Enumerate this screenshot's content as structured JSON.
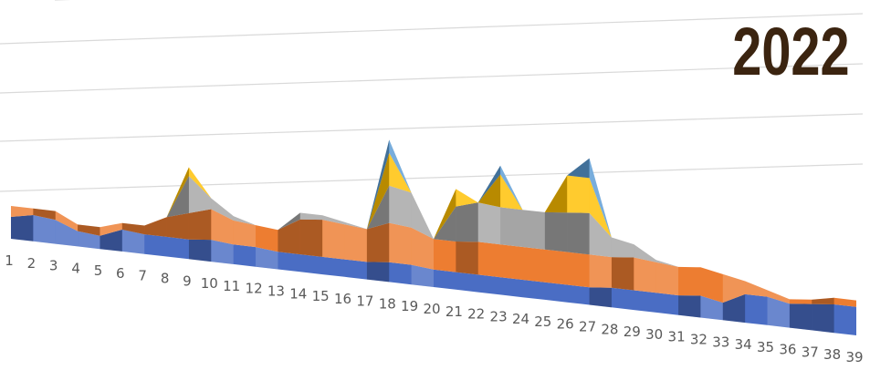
{
  "chart_data": {
    "type": "area",
    "title": "2022",
    "categories": [
      "1",
      "2",
      "3",
      "4",
      "5",
      "6",
      "7",
      "8",
      "9",
      "10",
      "11",
      "12",
      "13",
      "14",
      "15",
      "16",
      "17",
      "18",
      "19",
      "20",
      "21",
      "22",
      "23",
      "24",
      "25",
      "26",
      "27",
      "28",
      "29",
      "30",
      "31",
      "32",
      "33",
      "34",
      "35",
      "36",
      "37",
      "38",
      "39"
    ],
    "series": [
      {
        "name": "",
        "values": [
          1.0,
          1.2,
          1.1,
          0.7,
          0.6,
          1.0,
          0.9,
          0.9,
          0.9,
          1.0,
          0.9,
          0.9,
          0.8,
          0.8,
          0.8,
          0.8,
          0.8,
          0.9,
          0.9,
          0.8,
          0.8,
          0.8,
          0.8,
          0.8,
          0.8,
          0.8,
          0.8,
          0.9,
          0.9,
          0.9,
          0.9,
          1.0,
          0.8,
          1.3,
          1.3,
          1.1,
          1.2,
          1.3,
          1.3
        ],
        "color": "#4a6dc4"
      },
      {
        "name": "",
        "values": [
          0.5,
          0.3,
          0.4,
          0.3,
          0.4,
          0.3,
          0.4,
          0.9,
          1.2,
          1.4,
          1.1,
          1.0,
          1.0,
          1.6,
          1.7,
          1.6,
          1.5,
          1.8,
          1.7,
          1.4,
          1.4,
          1.5,
          1.5,
          1.5,
          1.5,
          1.5,
          1.5,
          1.4,
          1.5,
          1.4,
          1.3,
          1.3,
          1.3,
          0.6,
          0.3,
          0.2,
          0.2,
          0.3,
          0.3
        ],
        "color": "#ed7d31"
      },
      {
        "name": "",
        "values": [
          0.0,
          0.0,
          0.0,
          0.0,
          0.0,
          0.0,
          0.0,
          0.0,
          1.7,
          0.5,
          0.2,
          0.0,
          0.0,
          0.3,
          0.2,
          0.1,
          0.0,
          1.7,
          1.6,
          0.0,
          1.6,
          1.8,
          1.7,
          1.7,
          1.7,
          1.8,
          1.9,
          0.9,
          0.6,
          0.1,
          0.0,
          0.0,
          0.0,
          0.0,
          0.0,
          0.0,
          0.0,
          0.0,
          0.0
        ],
        "color": "#a5a5a5"
      },
      {
        "name": "",
        "values": [
          0.0,
          0.0,
          0.0,
          0.0,
          0.0,
          0.0,
          0.0,
          0.0,
          0.4,
          0.0,
          0.0,
          0.0,
          0.0,
          0.0,
          0.0,
          0.0,
          0.0,
          1.5,
          0.0,
          0.0,
          0.8,
          0.0,
          1.5,
          0.0,
          0.0,
          1.7,
          1.6,
          0.0,
          0.0,
          0.0,
          0.0,
          0.0,
          0.0,
          0.0,
          0.0,
          0.0,
          0.0,
          0.0,
          0.0
        ],
        "color": "#ffc000"
      },
      {
        "name": "",
        "values": [
          0.0,
          0.0,
          0.0,
          0.0,
          0.0,
          0.0,
          0.0,
          0.0,
          0.0,
          0.0,
          0.0,
          0.0,
          0.0,
          0.0,
          0.0,
          0.0,
          0.0,
          0.6,
          0.0,
          0.0,
          0.0,
          0.0,
          0.4,
          0.0,
          0.0,
          0.0,
          0.9,
          0.0,
          0.0,
          0.0,
          0.0,
          0.0,
          0.0,
          0.0,
          0.0,
          0.0,
          0.0,
          0.0,
          0.0
        ],
        "color": "#5b9bd5"
      }
    ],
    "ylim": [
      0,
      6
    ],
    "grid": true,
    "legend": "none"
  }
}
